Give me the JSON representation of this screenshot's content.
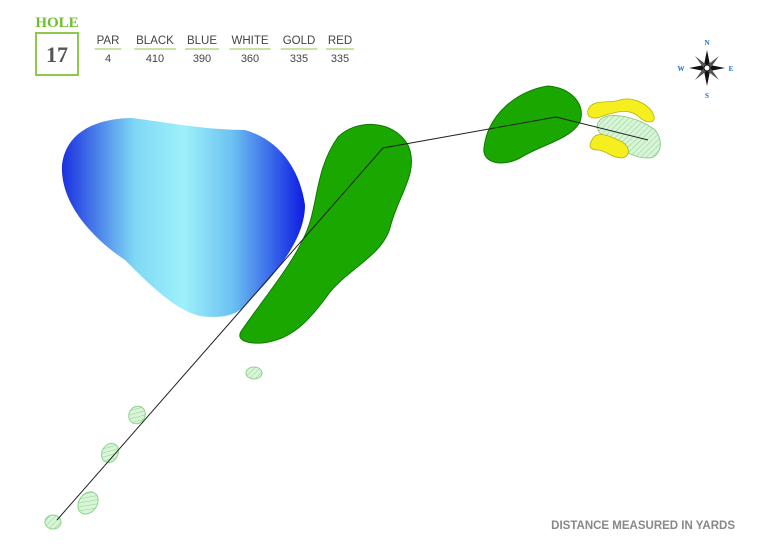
{
  "hole": {
    "label": "HOLE",
    "number": 17
  },
  "tees": [
    {
      "name": "PAR",
      "value": 4
    },
    {
      "name": "BLACK",
      "value": 410
    },
    {
      "name": "BLUE",
      "value": 390
    },
    {
      "name": "WHITE",
      "value": 360
    },
    {
      "name": "GOLD",
      "value": 335
    },
    {
      "name": "RED",
      "value": 335
    }
  ],
  "compass": {
    "n": "N",
    "e": "E",
    "s": "S",
    "w": "W"
  },
  "footer": "DISTANCE MEASURED IN YARDS"
}
